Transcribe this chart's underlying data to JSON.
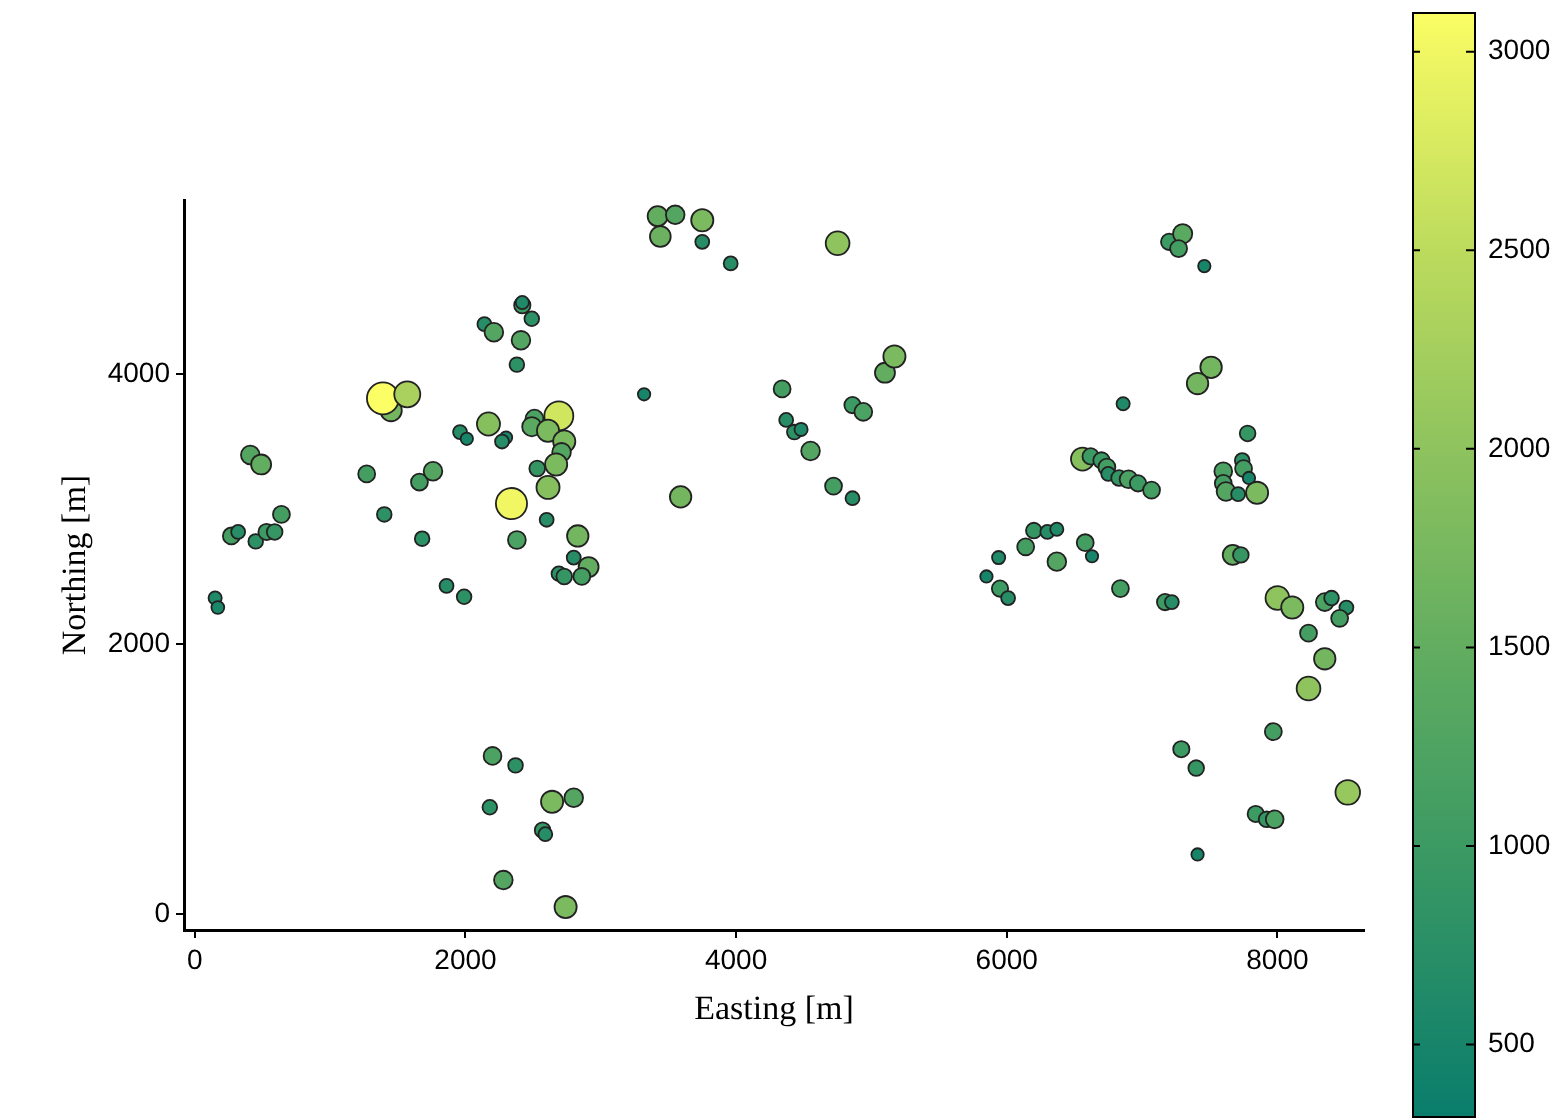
{
  "chart_data": {
    "type": "scatter",
    "xlabel": "Easting [m]",
    "ylabel": "Northing [m]",
    "marker": "circle",
    "xlim": [
      -80,
      8640
    ],
    "ylim": [
      -120,
      5290
    ],
    "xticks": [
      0,
      2000,
      4000,
      6000,
      8000
    ],
    "yticks": [
      0,
      2000,
      4000
    ],
    "clim": [
      320,
      3100
    ],
    "cticks": [
      500,
      1000,
      1500,
      2000,
      2500,
      3000
    ],
    "x": [
      150,
      170,
      410,
      490,
      270,
      320,
      450,
      530,
      590,
      640,
      1270,
      1400,
      1660,
      1760,
      1680,
      1860,
      1990,
      1450,
      1390,
      1570,
      1960,
      2010,
      2170,
      2140,
      2210,
      2420,
      2420,
      2490,
      2410,
      2380,
      2300,
      2270,
      2510,
      2490,
      2690,
      2610,
      2730,
      2710,
      2670,
      2530,
      2610,
      2340,
      2600,
      2380,
      2830,
      2800,
      2910,
      2690,
      2730,
      2860,
      3320,
      3420,
      3550,
      3750,
      3440,
      3750,
      3960,
      4750,
      3590,
      4340,
      4370,
      4430,
      4480,
      4550,
      4860,
      4940,
      5100,
      5170,
      4720,
      4860,
      6560,
      6620,
      6200,
      6140,
      6300,
      6370,
      5940,
      5850,
      5950,
      6010,
      6580,
      6630,
      6370,
      7200,
      7300,
      7270,
      7460,
      7510,
      7410,
      6860,
      7780,
      6700,
      6740,
      6750,
      6830,
      6900,
      6970,
      7070,
      7740,
      7750,
      7600,
      7600,
      7620,
      7710,
      7790,
      7850,
      6840,
      7170,
      7220,
      7670,
      7730,
      8000,
      8110,
      8350,
      8400,
      8510,
      8460,
      8230,
      8350,
      8230,
      7970,
      7290,
      7400,
      7410,
      7840,
      7920,
      7980,
      8520,
      2200,
      2370,
      2180,
      2640,
      2800,
      2570,
      2590,
      2280,
      2740
    ],
    "values": [
      2340,
      2270,
      3400,
      3330,
      2800,
      2830,
      2760,
      2830,
      2830,
      2960,
      3260,
      2960,
      3200,
      3280,
      2780,
      2430,
      2350,
      3730,
      3820,
      3850,
      3570,
      3520,
      3630,
      4370,
      4310,
      4510,
      4530,
      4410,
      4250,
      4070,
      3530,
      3500,
      3670,
      3610,
      3690,
      3580,
      3500,
      3420,
      3330,
      3300,
      3160,
      3040,
      2920,
      2770,
      2800,
      2640,
      2570,
      2520,
      2500,
      2500,
      3850,
      5170,
      5180,
      5140,
      5020,
      4980,
      4820,
      4970,
      3090,
      3890,
      3660,
      3570,
      3590,
      3430,
      3770,
      3720,
      4010,
      4130,
      3170,
      3080,
      3370,
      3390,
      2840,
      2720,
      2830,
      2850,
      2640,
      2500,
      2410,
      2340,
      2750,
      2650,
      2610,
      4980,
      5040,
      4930,
      4800,
      4050,
      3930,
      3780,
      3560,
      3360,
      3310,
      3260,
      3230,
      3220,
      3190,
      3140,
      3360,
      3300,
      3280,
      3190,
      3130,
      3110,
      3230,
      3120,
      2410,
      2310,
      2310,
      2660,
      2660,
      2340,
      2270,
      2310,
      2340,
      2270,
      2190,
      2080,
      1890,
      1670,
      1350,
      1220,
      1080,
      440,
      740,
      700,
      700,
      900,
      1170,
      1100,
      790,
      830,
      860,
      620,
      590,
      250,
      50
    ],
    "cvalues": [
      600,
      550,
      1300,
      1500,
      1100,
      700,
      800,
      1000,
      900,
      1100,
      1100,
      800,
      1100,
      1300,
      800,
      700,
      800,
      1700,
      3100,
      2300,
      700,
      500,
      1900,
      700,
      1300,
      1000,
      600,
      800,
      1300,
      800,
      500,
      700,
      1200,
      1400,
      2700,
      1800,
      1800,
      1300,
      1800,
      900,
      1900,
      3000,
      700,
      1200,
      1700,
      700,
      1500,
      800,
      900,
      1100,
      500,
      1500,
      1300,
      1800,
      1600,
      700,
      700,
      2000,
      1700,
      1100,
      700,
      800,
      600,
      1300,
      1000,
      1200,
      1500,
      1800,
      1100,
      700,
      1900,
      1000,
      900,
      1100,
      700,
      600,
      600,
      500,
      1000,
      700,
      1100,
      500,
      1300,
      1000,
      1400,
      1100,
      500,
      1700,
      1700,
      600,
      900,
      1000,
      1100,
      700,
      900,
      1200,
      1000,
      1100,
      800,
      1100,
      1200,
      1100,
      1300,
      700,
      500,
      1800,
      1100,
      1000,
      700,
      1500,
      900,
      2000,
      1800,
      1200,
      800,
      700,
      1100,
      1100,
      1700,
      2000,
      1100,
      1000,
      900,
      500,
      1000,
      900,
      1200,
      2100,
      1200,
      800,
      800,
      1800,
      1300,
      900,
      700,
      1300,
      1800
    ],
    "sizes": [
      0.17,
      0.16,
      0.34,
      0.39,
      0.28,
      0.19,
      0.21,
      0.26,
      0.24,
      0.28,
      0.28,
      0.21,
      0.28,
      0.34,
      0.21,
      0.19,
      0.21,
      0.45,
      1,
      0.66,
      0.19,
      0.15,
      0.52,
      0.19,
      0.34,
      0.26,
      0.17,
      0.21,
      0.34,
      0.21,
      0.15,
      0.19,
      0.31,
      0.36,
      0.82,
      0.48,
      0.48,
      0.34,
      0.48,
      0.24,
      0.52,
      0.95,
      0.19,
      0.31,
      0.45,
      0.19,
      0.39,
      0.21,
      0.24,
      0.28,
      0.15,
      0.39,
      0.34,
      0.48,
      0.42,
      0.19,
      0.19,
      0.55,
      0.45,
      0.28,
      0.19,
      0.21,
      0.17,
      0.34,
      0.26,
      0.31,
      0.39,
      0.48,
      0.28,
      0.19,
      0.52,
      0.26,
      0.24,
      0.28,
      0.19,
      0.17,
      0.17,
      0.15,
      0.26,
      0.19,
      0.28,
      0.15,
      0.34,
      0.26,
      0.36,
      0.28,
      0.15,
      0.45,
      0.45,
      0.17,
      0.24,
      0.26,
      0.28,
      0.19,
      0.24,
      0.31,
      0.26,
      0.28,
      0.21,
      0.28,
      0.31,
      0.28,
      0.34,
      0.19,
      0.15,
      0.48,
      0.28,
      0.26,
      0.19,
      0.39,
      0.24,
      0.55,
      0.48,
      0.31,
      0.21,
      0.19,
      0.28,
      0.28,
      0.45,
      0.55,
      0.28,
      0.26,
      0.24,
      0.15,
      0.26,
      0.24,
      0.31,
      0.59,
      0.31,
      0.21,
      0.21,
      0.48,
      0.34,
      0.24,
      0.19,
      0.34,
      0.48
    ]
  }
}
